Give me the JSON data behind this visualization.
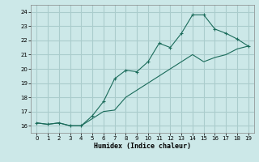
{
  "xlabel": "Humidex (Indice chaleur)",
  "bg_color": "#cce8e8",
  "grid_color": "#aacccc",
  "line_color": "#1a6b5a",
  "line1_x": [
    0,
    1,
    2,
    3,
    4,
    5,
    6,
    7,
    8,
    9,
    10,
    11,
    12,
    13,
    14,
    15,
    16,
    17,
    18,
    19
  ],
  "line1_y": [
    16.2,
    16.1,
    16.2,
    16.0,
    16.0,
    16.7,
    17.7,
    19.3,
    19.9,
    19.8,
    20.5,
    21.8,
    21.5,
    22.5,
    23.8,
    23.8,
    22.8,
    22.5,
    22.1,
    21.6
  ],
  "line2_x": [
    0,
    1,
    2,
    3,
    4,
    5,
    6,
    7,
    8,
    9,
    10,
    11,
    12,
    13,
    14,
    15,
    16,
    17,
    18,
    19
  ],
  "line2_y": [
    16.2,
    16.1,
    16.2,
    16.0,
    16.0,
    16.5,
    17.0,
    17.1,
    18.0,
    18.5,
    19.0,
    19.5,
    20.0,
    20.5,
    21.0,
    20.5,
    20.8,
    21.0,
    21.4,
    21.6
  ],
  "xlim": [
    -0.5,
    19.5
  ],
  "ylim": [
    15.5,
    24.5
  ],
  "yticks": [
    16,
    17,
    18,
    19,
    20,
    21,
    22,
    23,
    24
  ],
  "xticks": [
    0,
    1,
    2,
    3,
    4,
    5,
    6,
    7,
    8,
    9,
    10,
    11,
    12,
    13,
    14,
    15,
    16,
    17,
    18,
    19
  ]
}
